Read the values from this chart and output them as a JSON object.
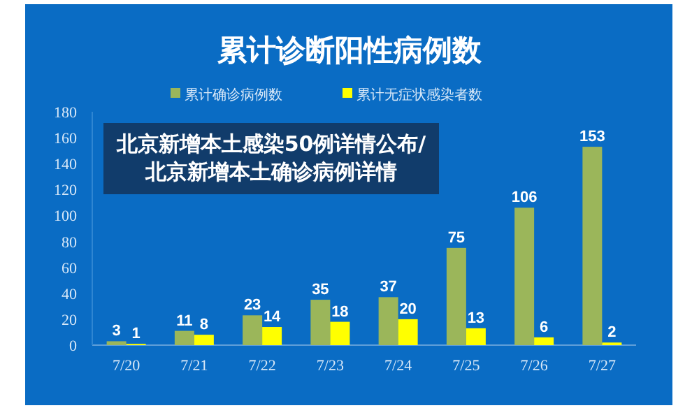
{
  "chart_data": {
    "type": "bar",
    "title": "累计诊断阳性病例数",
    "categories": [
      "7/20",
      "7/21",
      "7/22",
      "7/23",
      "7/24",
      "7/25",
      "7/26",
      "7/27"
    ],
    "series": [
      {
        "name": "累计确诊病例数",
        "color": "#9bb65a",
        "values": [
          3,
          11,
          23,
          35,
          37,
          75,
          106,
          153
        ]
      },
      {
        "name": "累计无症状感染者数",
        "color": "#ffff00",
        "values": [
          1,
          8,
          14,
          18,
          20,
          13,
          6,
          2
        ]
      }
    ],
    "ylim": [
      0,
      180
    ],
    "yticks": [
      0,
      20,
      40,
      60,
      80,
      100,
      120,
      140,
      160,
      180
    ],
    "data_labels": true,
    "legend": "top",
    "grid": false,
    "annotations": [
      "北京新增本土感染50例详情公布/北京新增本土确诊病例详情"
    ]
  }
}
